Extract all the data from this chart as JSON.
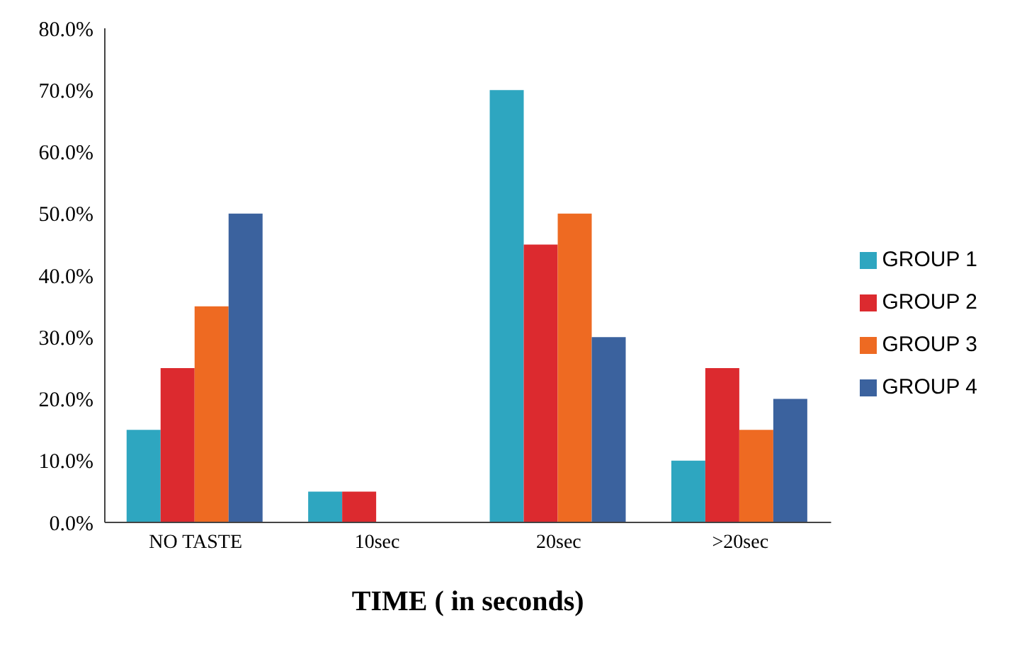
{
  "chart_data": {
    "type": "bar",
    "xlabel": "TIME ( in seconds)",
    "categories": [
      "NO TASTE",
      "10sec",
      "20sec",
      ">20sec"
    ],
    "series": [
      {
        "name": "GROUP 1",
        "color": "#2ea6c0",
        "values": [
          15,
          5,
          70,
          10
        ]
      },
      {
        "name": "GROUP 2",
        "color": "#dc2a2f",
        "values": [
          25,
          5,
          45,
          25
        ]
      },
      {
        "name": "GROUP 3",
        "color": "#ee6a22",
        "values": [
          35,
          0,
          50,
          15
        ]
      },
      {
        "name": "GROUP 4",
        "color": "#3b629e",
        "values": [
          50,
          0,
          30,
          20
        ]
      }
    ],
    "ylim": [
      0,
      80
    ],
    "yticks": [
      {
        "value": 0,
        "label": "0.0%"
      },
      {
        "value": 10,
        "label": "10.0%"
      },
      {
        "value": 20,
        "label": "20.0%"
      },
      {
        "value": 30,
        "label": "30.0%"
      },
      {
        "value": 40,
        "label": "40.0%"
      },
      {
        "value": 50,
        "label": "50.0%"
      },
      {
        "value": 60,
        "label": "60.0%"
      },
      {
        "value": 70,
        "label": "70.0%"
      },
      {
        "value": 80,
        "label": "80.0%"
      }
    ],
    "grid": false,
    "legend": "right"
  }
}
